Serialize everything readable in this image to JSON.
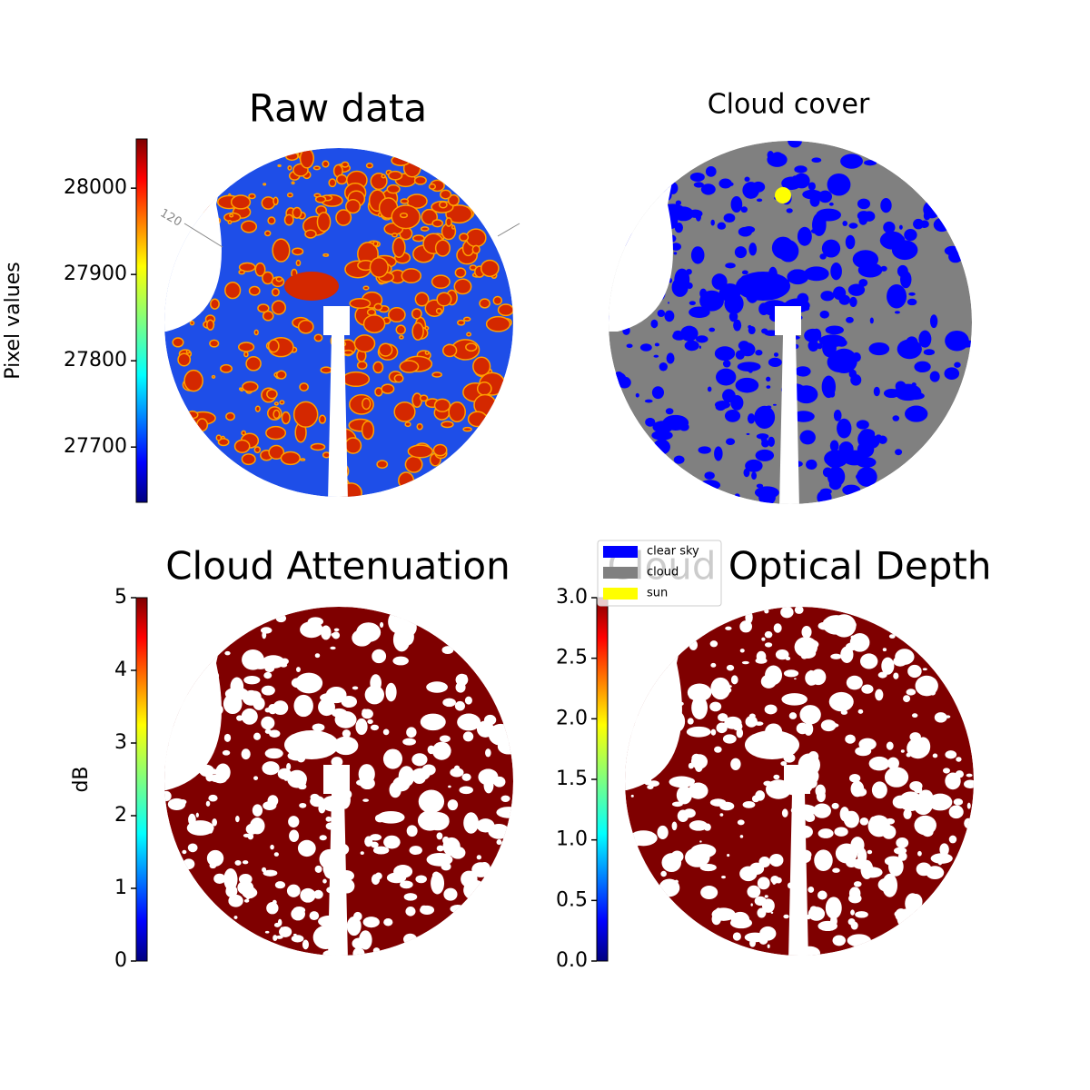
{
  "chart_data": [
    {
      "type": "image",
      "title": "Raw data",
      "annotation": "120",
      "colorbar": {
        "label": "Pixel values",
        "colormap": "jet",
        "ylim": [
          27636,
          28057
        ],
        "yticks": [
          27700,
          27800,
          27900,
          28000
        ]
      }
    },
    {
      "type": "categorical-image",
      "title": "Cloud cover",
      "legend": [
        {
          "name": "clear sky",
          "color": "#0000ff"
        },
        {
          "name": "cloud",
          "color": "#808080"
        },
        {
          "name": "sun",
          "color": "#ffff00"
        }
      ]
    },
    {
      "type": "image",
      "title": "Cloud Attenuation",
      "colorbar": {
        "label": "dB",
        "colormap": "jet",
        "ylim": [
          0,
          5
        ],
        "yticks": [
          0,
          1,
          2,
          3,
          4,
          5
        ]
      }
    },
    {
      "type": "image",
      "title": "Cloud Optical Depth",
      "colorbar": {
        "colormap": "jet",
        "ylim": [
          0,
          3
        ],
        "yticks": [
          {
            "value": 0,
            "label": "0.0"
          },
          {
            "value": 0.5,
            "label": "0.5"
          },
          {
            "value": 1,
            "label": "1.0"
          },
          {
            "value": 1.5,
            "label": "1.5"
          },
          {
            "value": 2,
            "label": "2.0"
          },
          {
            "value": 2.5,
            "label": "2.5"
          },
          {
            "value": 3,
            "label": "3.0"
          }
        ]
      }
    }
  ]
}
